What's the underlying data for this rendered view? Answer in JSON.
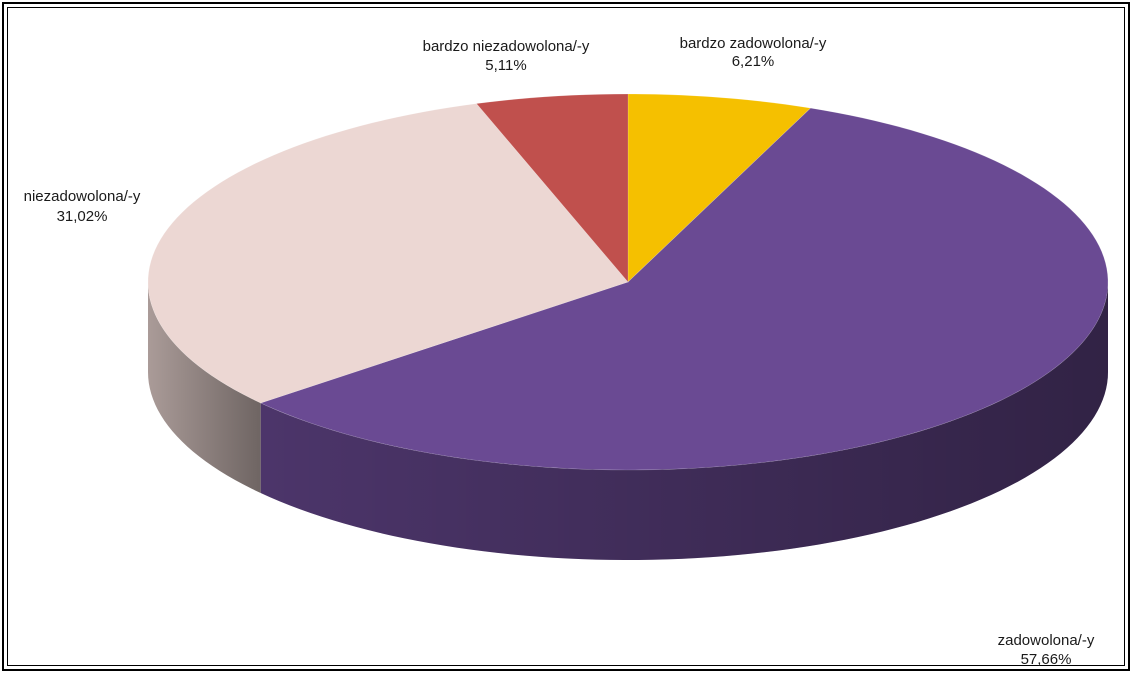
{
  "chart_data": {
    "type": "pie",
    "style": "3d",
    "title": "",
    "slices": [
      {
        "label": "bardzo zadowolona/-y",
        "pct_text": "6,21%",
        "value": 6.21,
        "color": "#f5c000"
      },
      {
        "label": "zadowolona/-y",
        "pct_text": "57,66%",
        "value": 57.66,
        "color": "#6a4a93"
      },
      {
        "label": "niezadowolona/-y",
        "pct_text": "31,02%",
        "value": 31.02,
        "color": "#ecd7d3"
      },
      {
        "label": "bardzo niezadowolona/-y",
        "pct_text": "5,11%",
        "value": 5.11,
        "color": "#c0504d"
      }
    ]
  }
}
